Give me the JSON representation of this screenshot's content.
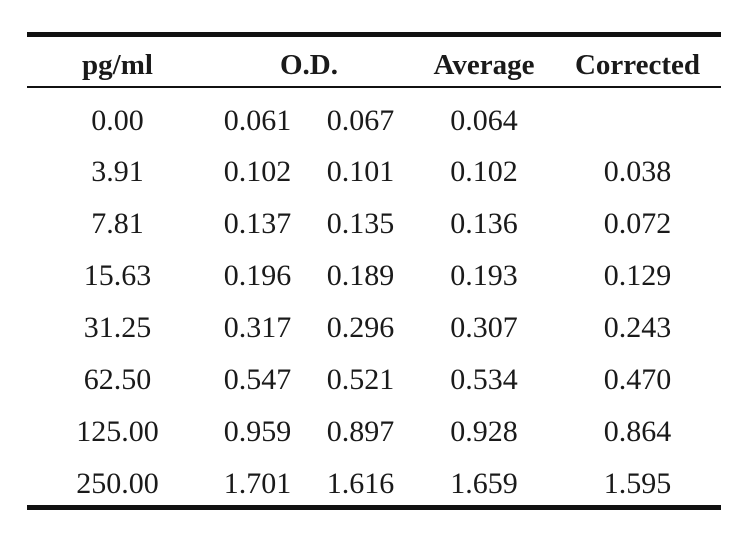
{
  "table": {
    "headers": {
      "concentration": "pg/ml",
      "od": "O.D.",
      "average": "Average",
      "corrected": "Corrected"
    },
    "rows": [
      {
        "pg_ml": "0.00",
        "od1": "0.061",
        "od2": "0.067",
        "average": "0.064",
        "corrected": ""
      },
      {
        "pg_ml": "3.91",
        "od1": "0.102",
        "od2": "0.101",
        "average": "0.102",
        "corrected": "0.038"
      },
      {
        "pg_ml": "7.81",
        "od1": "0.137",
        "od2": "0.135",
        "average": "0.136",
        "corrected": "0.072"
      },
      {
        "pg_ml": "15.63",
        "od1": "0.196",
        "od2": "0.189",
        "average": "0.193",
        "corrected": "0.129"
      },
      {
        "pg_ml": "31.25",
        "od1": "0.317",
        "od2": "0.296",
        "average": "0.307",
        "corrected": "0.243"
      },
      {
        "pg_ml": "62.50",
        "od1": "0.547",
        "od2": "0.521",
        "average": "0.534",
        "corrected": "0.470"
      },
      {
        "pg_ml": "125.00",
        "od1": "0.959",
        "od2": "0.897",
        "average": "0.928",
        "corrected": "0.864"
      },
      {
        "pg_ml": "250.00",
        "od1": "1.701",
        "od2": "1.616",
        "average": "1.659",
        "corrected": "1.595"
      }
    ]
  }
}
